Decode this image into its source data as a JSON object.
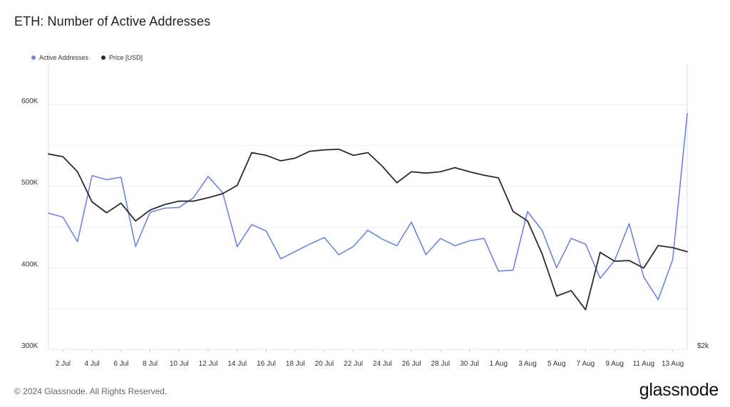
{
  "title": "ETH: Number of Active Addresses",
  "legend": [
    {
      "label": "Active Addresses",
      "color": "#6a84e6"
    },
    {
      "label": "Price [USD]",
      "color": "#2b2b2b"
    }
  ],
  "footer": {
    "copyright": "© 2024 Glassnode. All Rights Reserved.",
    "brand": "glassnode"
  },
  "chart_data": {
    "type": "line",
    "title": "ETH: Number of Active Addresses",
    "y_left": {
      "ticks": [
        "300K",
        "400K",
        "500K",
        "600K"
      ],
      "range": [
        300000,
        620000
      ]
    },
    "y_right": {
      "ticks": [
        "$2k"
      ],
      "range": [
        2000,
        3700
      ]
    },
    "x_ticks": [
      "2 Jul",
      "4 Jul",
      "6 Jul",
      "8 Jul",
      "10 Jul",
      "12 Jul",
      "14 Jul",
      "16 Jul",
      "18 Jul",
      "20 Jul",
      "22 Jul",
      "24 Jul",
      "26 Jul",
      "28 Jul",
      "30 Jul",
      "1 Aug",
      "3 Aug",
      "5 Aug",
      "7 Aug",
      "9 Aug",
      "11 Aug",
      "13 Aug"
    ],
    "x_dates": [
      "1 Jul",
      "2 Jul",
      "3 Jul",
      "4 Jul",
      "5 Jul",
      "6 Jul",
      "7 Jul",
      "8 Jul",
      "9 Jul",
      "10 Jul",
      "11 Jul",
      "12 Jul",
      "13 Jul",
      "14 Jul",
      "15 Jul",
      "16 Jul",
      "17 Jul",
      "18 Jul",
      "19 Jul",
      "20 Jul",
      "21 Jul",
      "22 Jul",
      "23 Jul",
      "24 Jul",
      "25 Jul",
      "26 Jul",
      "27 Jul",
      "28 Jul",
      "29 Jul",
      "30 Jul",
      "31 Jul",
      "1 Aug",
      "2 Aug",
      "3 Aug",
      "4 Aug",
      "5 Aug",
      "6 Aug",
      "7 Aug",
      "8 Aug",
      "9 Aug",
      "10 Aug",
      "11 Aug",
      "12 Aug",
      "13 Aug",
      "14 Aug"
    ],
    "series": [
      {
        "name": "Active Addresses",
        "axis": "left",
        "color": "#6a84e6",
        "values": [
          467000,
          462000,
          432000,
          513000,
          508000,
          511000,
          426000,
          468000,
          473000,
          474000,
          486000,
          512000,
          492000,
          426000,
          453000,
          445000,
          411000,
          420000,
          429000,
          437000,
          416000,
          426000,
          446000,
          435000,
          427000,
          456000,
          416000,
          436000,
          427000,
          433000,
          436000,
          396000,
          397000,
          469000,
          446000,
          400000,
          436000,
          429000,
          387000,
          409000,
          454000,
          389000,
          361000,
          410000,
          589000
        ]
      },
      {
        "name": "Price [USD]",
        "axis": "right",
        "color": "#2b2b2b",
        "values": [
          3430,
          3410,
          3300,
          3080,
          3000,
          3070,
          2940,
          3020,
          3060,
          3085,
          3085,
          3110,
          3140,
          3200,
          3440,
          3420,
          3380,
          3400,
          3450,
          3460,
          3465,
          3420,
          3440,
          3340,
          3220,
          3300,
          3290,
          3300,
          3330,
          3300,
          3275,
          3255,
          3010,
          2940,
          2700,
          2390,
          2430,
          2290,
          2710,
          2645,
          2650,
          2595,
          2760,
          2745,
          2715
        ]
      }
    ]
  }
}
